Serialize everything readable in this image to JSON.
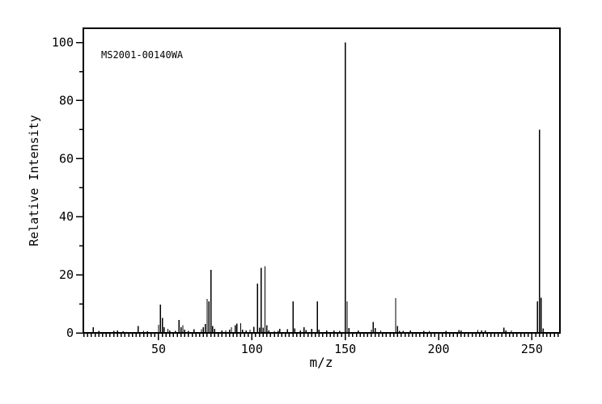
{
  "chart_data": {
    "type": "bar",
    "subtype": "mass-spectrum",
    "id_label": "MS2001-00140WA",
    "xlabel": "m/z",
    "ylabel": "Relative Intensity",
    "x_range": [
      9.7,
      265.0
    ],
    "y_range": [
      0,
      104.9
    ],
    "x_major_ticks": [
      50,
      100,
      150,
      200,
      250
    ],
    "x_minor_step": 2,
    "y_major_ticks": [
      0,
      20,
      40,
      60,
      80,
      100
    ],
    "y_minor_ticks": [
      10,
      30,
      50,
      70,
      90
    ],
    "grid": "off",
    "bar_color": "#000000",
    "frame_color": "#000000",
    "background_color": "#ffffff",
    "peaks": [
      [
        15,
        1.9
      ],
      [
        18,
        0.7
      ],
      [
        26,
        0.7
      ],
      [
        28,
        0.9
      ],
      [
        31,
        0.6
      ],
      [
        39,
        2.3
      ],
      [
        42,
        0.7
      ],
      [
        44,
        0.6
      ],
      [
        50,
        2.8
      ],
      [
        51,
        9.7
      ],
      [
        52,
        5.1
      ],
      [
        53,
        1.9
      ],
      [
        55,
        1.4
      ],
      [
        56,
        0.9
      ],
      [
        59,
        0.7
      ],
      [
        61,
        4.5
      ],
      [
        62,
        2.0
      ],
      [
        63,
        2.6
      ],
      [
        64,
        1.1
      ],
      [
        66,
        0.7
      ],
      [
        69,
        1.2
      ],
      [
        73,
        1.2
      ],
      [
        74,
        2.0
      ],
      [
        75,
        3.0
      ],
      [
        76,
        11.7
      ],
      [
        77,
        10.8
      ],
      [
        78,
        21.7
      ],
      [
        79,
        2.3
      ],
      [
        80,
        1.4
      ],
      [
        84,
        0.9
      ],
      [
        86,
        0.9
      ],
      [
        88,
        1.1
      ],
      [
        89,
        1.9
      ],
      [
        91,
        2.6
      ],
      [
        92,
        3.2
      ],
      [
        94,
        3.3
      ],
      [
        95,
        1.1
      ],
      [
        97,
        0.9
      ],
      [
        99,
        1.1
      ],
      [
        101,
        2.1
      ],
      [
        103,
        17.0
      ],
      [
        104,
        1.8
      ],
      [
        105,
        22.4
      ],
      [
        106,
        1.8
      ],
      [
        107,
        22.9
      ],
      [
        108,
        2.6
      ],
      [
        109,
        0.9
      ],
      [
        112,
        0.7
      ],
      [
        114,
        0.7
      ],
      [
        115,
        1.4
      ],
      [
        119,
        1.2
      ],
      [
        122,
        10.8
      ],
      [
        123,
        1.5
      ],
      [
        126,
        0.8
      ],
      [
        128,
        1.9
      ],
      [
        129,
        1.0
      ],
      [
        132,
        1.4
      ],
      [
        135,
        10.9
      ],
      [
        136,
        1.1
      ],
      [
        140,
        0.9
      ],
      [
        144,
        0.8
      ],
      [
        147,
        0.7
      ],
      [
        150,
        100.0
      ],
      [
        151,
        10.8
      ],
      [
        152,
        1.7
      ],
      [
        157,
        0.8
      ],
      [
        164,
        1.1
      ],
      [
        165,
        3.8
      ],
      [
        166,
        1.7
      ],
      [
        169,
        0.8
      ],
      [
        177,
        11.9
      ],
      [
        178,
        2.3
      ],
      [
        179,
        0.7
      ],
      [
        181,
        0.7
      ],
      [
        185,
        0.8
      ],
      [
        192,
        0.7
      ],
      [
        195,
        0.7
      ],
      [
        204,
        0.7
      ],
      [
        211,
        1.0
      ],
      [
        212,
        0.9
      ],
      [
        221,
        1.0
      ],
      [
        223,
        0.9
      ],
      [
        225,
        0.9
      ],
      [
        235,
        1.8
      ],
      [
        236,
        0.9
      ],
      [
        239,
        0.9
      ],
      [
        253,
        10.8
      ],
      [
        254,
        70.0
      ],
      [
        255,
        12.1
      ],
      [
        256,
        1.5
      ]
    ]
  }
}
